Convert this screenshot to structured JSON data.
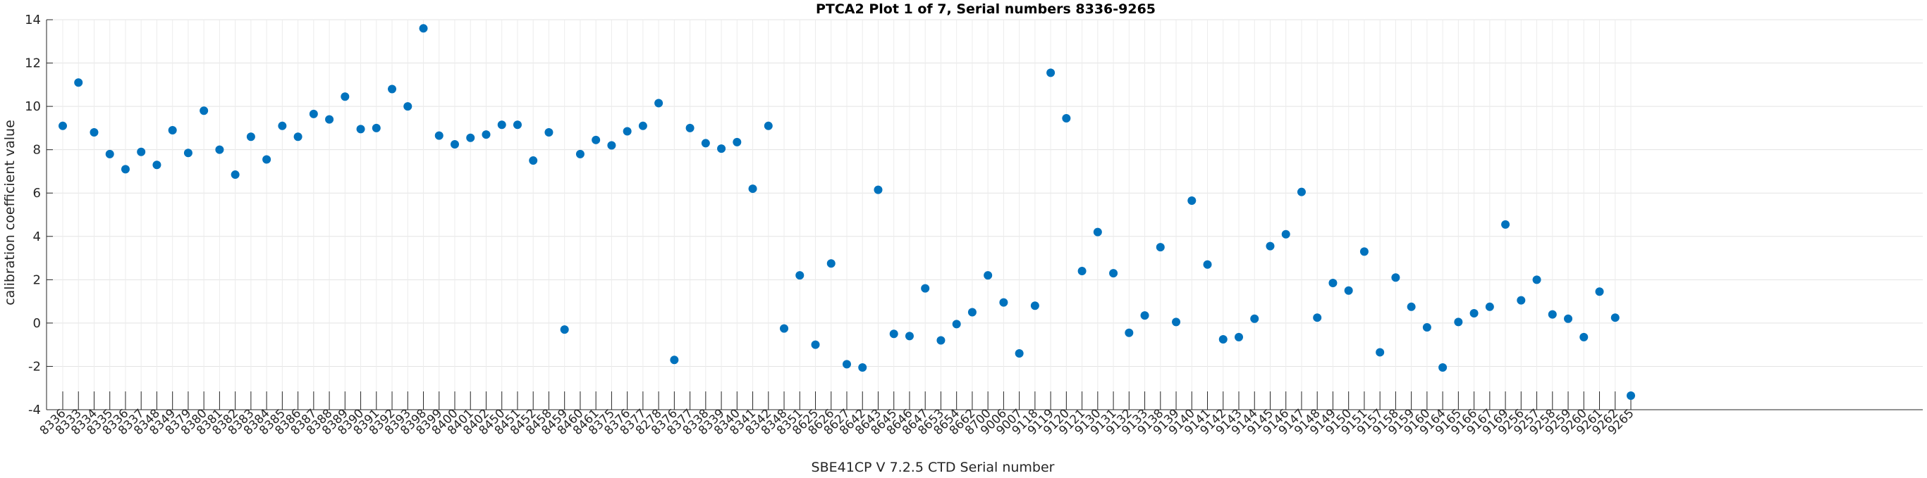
{
  "chart_data": {
    "type": "scatter",
    "title": "PTCA2 Plot 1 of 7, Serial numbers 8336-9265",
    "xlabel": "SBE41CP V 7.2.5 CTD Serial number",
    "ylabel": "calibration coefficient value",
    "ylim": [
      -4,
      14
    ],
    "yticks": [
      -4,
      -2,
      0,
      2,
      4,
      6,
      8,
      10,
      12,
      14
    ],
    "grid": true,
    "marker_color": "#0072BD",
    "categories": [
      "8336",
      "8333",
      "8334",
      "8335",
      "8336",
      "8337",
      "8348",
      "8349",
      "8379",
      "8380",
      "8381",
      "8382",
      "8383",
      "8384",
      "8385",
      "8386",
      "8387",
      "8388",
      "8389",
      "8390",
      "8391",
      "8392",
      "8393",
      "8398",
      "8399",
      "8400",
      "8401",
      "8402",
      "8450",
      "8451",
      "8452",
      "8458",
      "8459",
      "8460",
      "8461",
      "8375",
      "8376",
      "8377",
      "8278",
      "8376",
      "8377",
      "8338",
      "8339",
      "8340",
      "8341",
      "8342",
      "8348",
      "8351",
      "8625",
      "8626",
      "8627",
      "8642",
      "8643",
      "8645",
      "8646",
      "8647",
      "8653",
      "8654",
      "8662",
      "8700",
      "9006",
      "9007",
      "9118",
      "9119",
      "9120",
      "9121",
      "9130",
      "9131",
      "9132",
      "9133",
      "9138",
      "9139",
      "9140",
      "9141",
      "9142",
      "9143",
      "9144",
      "9145",
      "9146",
      "9147",
      "9148",
      "9149",
      "9150",
      "9151",
      "9157",
      "9158",
      "9159",
      "9160",
      "9164",
      "9165",
      "9166",
      "9167",
      "9169",
      "9256",
      "9257",
      "9258",
      "9259",
      "9260",
      "9261",
      "9262",
      "9265"
    ],
    "values": [
      9.1,
      11.1,
      8.8,
      7.8,
      7.1,
      7.9,
      7.3,
      8.9,
      7.85,
      9.8,
      8.0,
      6.85,
      8.6,
      7.55,
      9.1,
      8.6,
      9.65,
      9.4,
      10.45,
      8.95,
      9.0,
      10.8,
      10.0,
      13.6,
      8.65,
      8.25,
      8.55,
      8.7,
      9.15,
      9.15,
      7.5,
      8.8,
      -0.3,
      7.8,
      8.45,
      8.2,
      8.85,
      9.1,
      10.15,
      -1.7,
      9.0,
      8.3,
      8.05,
      8.35,
      6.2,
      9.1,
      -0.25,
      2.2,
      -1.0,
      2.75,
      -1.9,
      -2.05,
      6.15,
      -0.5,
      -0.6,
      1.6,
      -0.8,
      -0.05,
      0.5,
      2.2,
      0.95,
      -1.4,
      0.8,
      11.55,
      9.45,
      2.4,
      4.2,
      2.3,
      -0.45,
      0.35,
      3.5,
      0.05,
      5.65,
      2.7,
      -0.75,
      -0.65,
      0.2,
      3.55,
      4.1,
      6.05,
      0.25,
      1.85,
      1.5,
      3.3,
      -1.35,
      2.1,
      0.75,
      -0.2,
      -2.05,
      0.05,
      0.45,
      0.75,
      4.55,
      1.05,
      2.0,
      0.4,
      0.2,
      -0.65,
      1.45,
      0.25,
      -3.35
    ]
  }
}
